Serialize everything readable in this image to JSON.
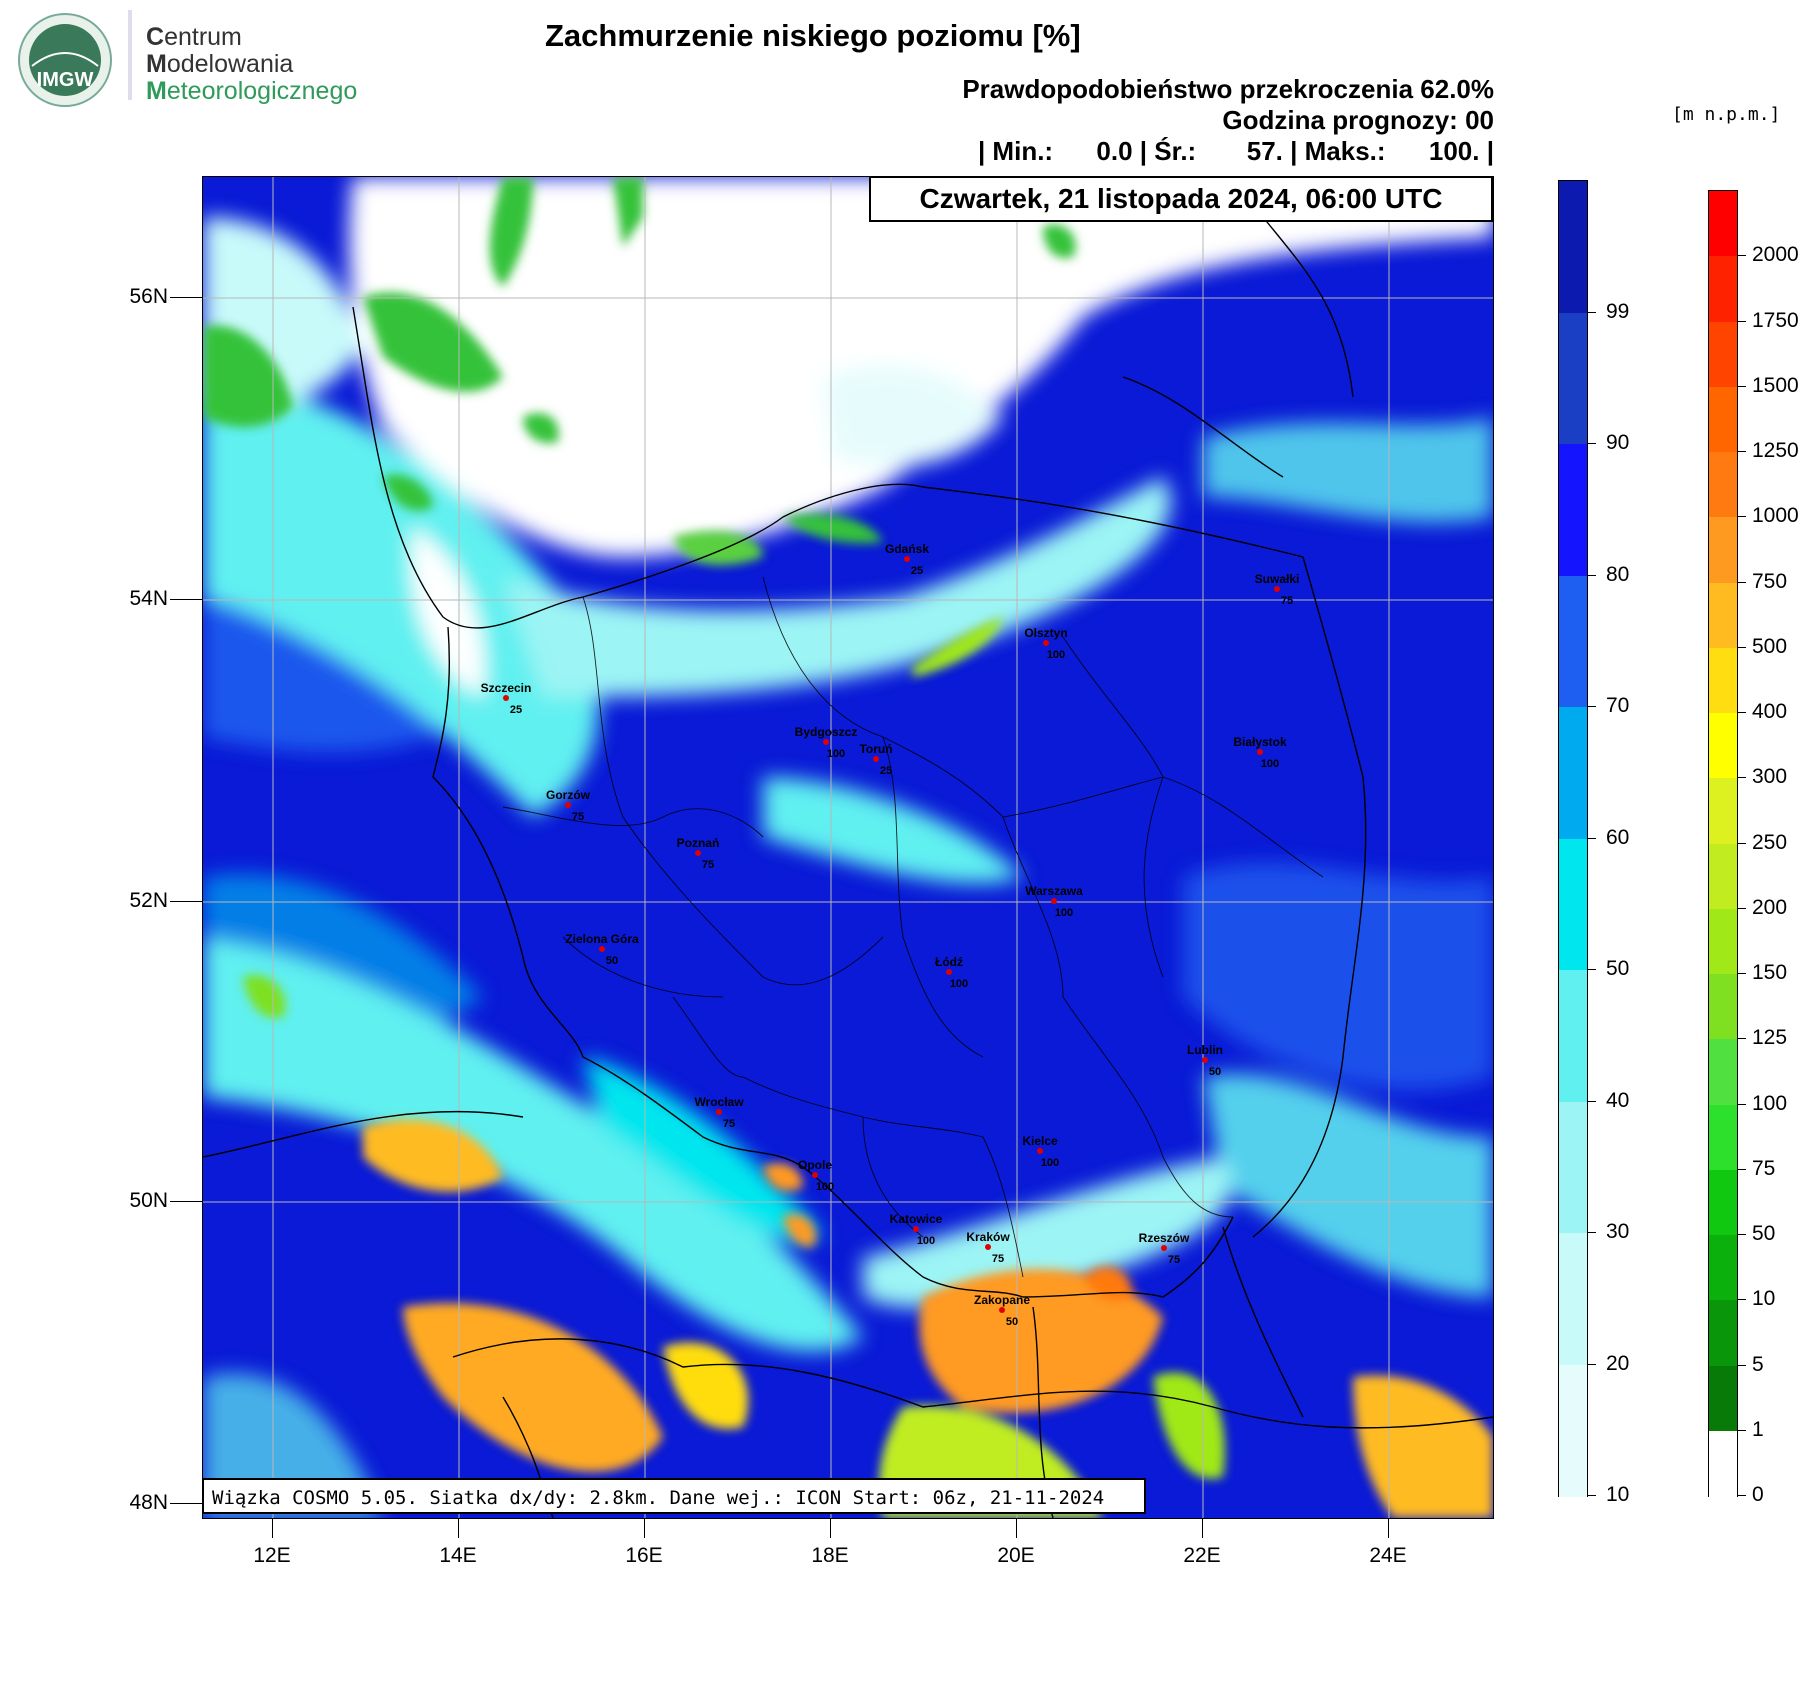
{
  "logo": {
    "emblem_text": "IMGW",
    "line1_initial": "C",
    "line1_rest": "entrum",
    "line2_initial": "M",
    "line2_rest": "odelowania",
    "line3_initial": "M",
    "line3_rest": "eteorologicznego"
  },
  "header": {
    "title": "Zachmurzenie niskiego poziomu [%]",
    "probability": "Prawdopodobieństwo przekroczenia 62.0%",
    "forecast_hour": "Godzina prognozy: 00",
    "stats": "| Min.:      0.0 | Śr.:       57. | Maks.:      100. |"
  },
  "map": {
    "date": "Czwartek, 21 listopada 2024, 06:00 UTC",
    "footer": "Wiązka COSMO 5.05. Siatka dx/dy: 2.8km. Dane wej.: ICON Start: 06z, 21-11-2024",
    "lat_labels": [
      "56N",
      "54N",
      "52N",
      "50N",
      "48N"
    ],
    "lon_labels": [
      "12E",
      "14E",
      "16E",
      "18E",
      "20E",
      "22E",
      "24E"
    ],
    "cities": [
      {
        "name": "Gdańsk",
        "value": "25"
      },
      {
        "name": "Suwałki",
        "value": "75"
      },
      {
        "name": "Olsztyn",
        "value": "100"
      },
      {
        "name": "Szczecin",
        "value": "25"
      },
      {
        "name": "Bydgoszcz",
        "value": "100"
      },
      {
        "name": "Toruń",
        "value": "25"
      },
      {
        "name": "Białystok",
        "value": "100"
      },
      {
        "name": "Gorzów",
        "value": "75"
      },
      {
        "name": "Poznań",
        "value": "75"
      },
      {
        "name": "Warszawa",
        "value": "100"
      },
      {
        "name": "Zielona Góra",
        "value": "50"
      },
      {
        "name": "Łódź",
        "value": "100"
      },
      {
        "name": "Lublin",
        "value": "50"
      },
      {
        "name": "Wrocław",
        "value": "75"
      },
      {
        "name": "Kielce",
        "value": "100"
      },
      {
        "name": "Opole",
        "value": "100"
      },
      {
        "name": "Katowice",
        "value": "100"
      },
      {
        "name": "Kraków",
        "value": "75"
      },
      {
        "name": "Rzeszów",
        "value": "75"
      },
      {
        "name": "Zakopane",
        "value": "50"
      }
    ]
  },
  "cloud_scale": {
    "labels": [
      "99",
      "90",
      "80",
      "70",
      "60",
      "50",
      "40",
      "30",
      "20",
      "10"
    ],
    "colors": [
      "#0c1ab0",
      "#1a3ec4",
      "#1414ff",
      "#1e5ef0",
      "#00aaee",
      "#00e6ee",
      "#60f0f0",
      "#9cf4f4",
      "#c8fafa",
      "#e6fcfc"
    ]
  },
  "terrain_scale": {
    "unit": "[m n.p.m.]",
    "labels": [
      "2000",
      "1750",
      "1500",
      "1250",
      "1000",
      "750",
      "500",
      "400",
      "300",
      "250",
      "200",
      "150",
      "125",
      "100",
      "75",
      "50",
      "10",
      "5",
      "1",
      "0"
    ],
    "colors": [
      "#ff0000",
      "#ff2200",
      "#ff4400",
      "#ff6600",
      "#ff7a10",
      "#ff9a20",
      "#ffbb20",
      "#ffdd10",
      "#ffff00",
      "#ddf020",
      "#c0ec20",
      "#a0e818",
      "#7ee020",
      "#50e040",
      "#2ce02c",
      "#10c810",
      "#0cb00c",
      "#0a960a",
      "#087a08",
      "#ffffff"
    ]
  },
  "colors": {
    "cloud_dense": "#0a1ad6",
    "cloud_light": "#60f0f0",
    "cloud_clear": "#ffffff",
    "terrain_green": "#34c23a",
    "terrain_orange": "#f09a20",
    "city_dot": "#e00000"
  }
}
